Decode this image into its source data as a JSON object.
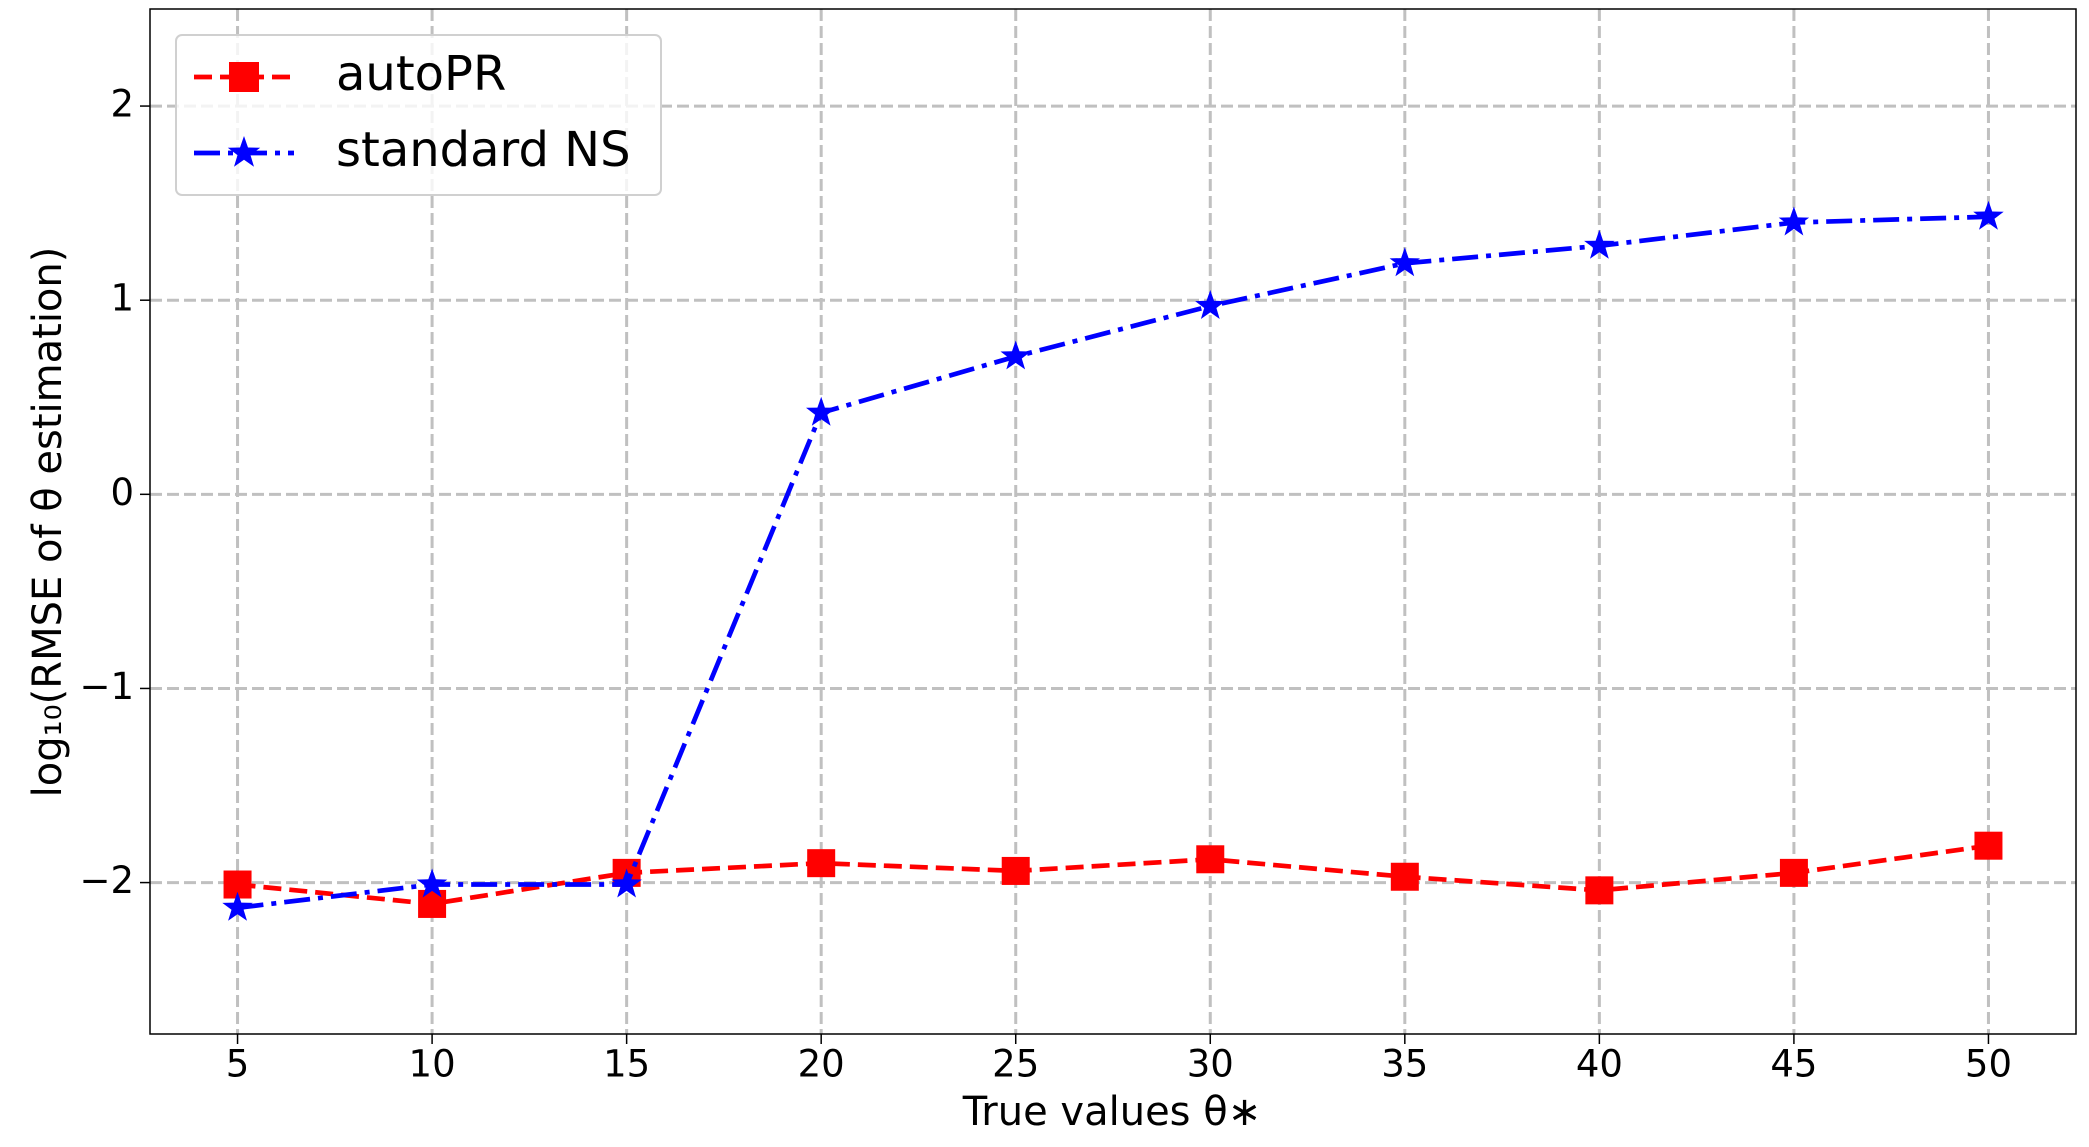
{
  "chart_data": {
    "type": "line",
    "x_label": "True values θ∗",
    "y_label": "log₁₀(RMSE of θ estimation)",
    "x": [
      5,
      10,
      15,
      20,
      25,
      30,
      35,
      40,
      45,
      50
    ],
    "series": [
      {
        "name": "autoPR",
        "color": "#ff0000",
        "marker": "square",
        "linestyle": "dashed",
        "values": [
          -2.01,
          -2.11,
          -1.95,
          -1.9,
          -1.94,
          -1.88,
          -1.97,
          -2.04,
          -1.95,
          -1.81
        ]
      },
      {
        "name": "standard NS",
        "color": "#0000ff",
        "marker": "star",
        "linestyle": "dashdot",
        "values": [
          -2.13,
          -2.01,
          -2.01,
          0.42,
          0.71,
          0.97,
          1.19,
          1.28,
          1.4,
          1.43
        ]
      }
    ],
    "xlim": [
      2.75,
      52.25
    ],
    "ylim": [
      -2.78,
      2.5
    ],
    "xticks": [
      5,
      10,
      15,
      20,
      25,
      30,
      35,
      40,
      45,
      50
    ],
    "yticks": [
      {
        "value": -2,
        "label": "−2"
      },
      {
        "value": -1,
        "label": "−1"
      },
      0,
      1,
      2
    ],
    "grid": true,
    "legend": "upper left"
  }
}
